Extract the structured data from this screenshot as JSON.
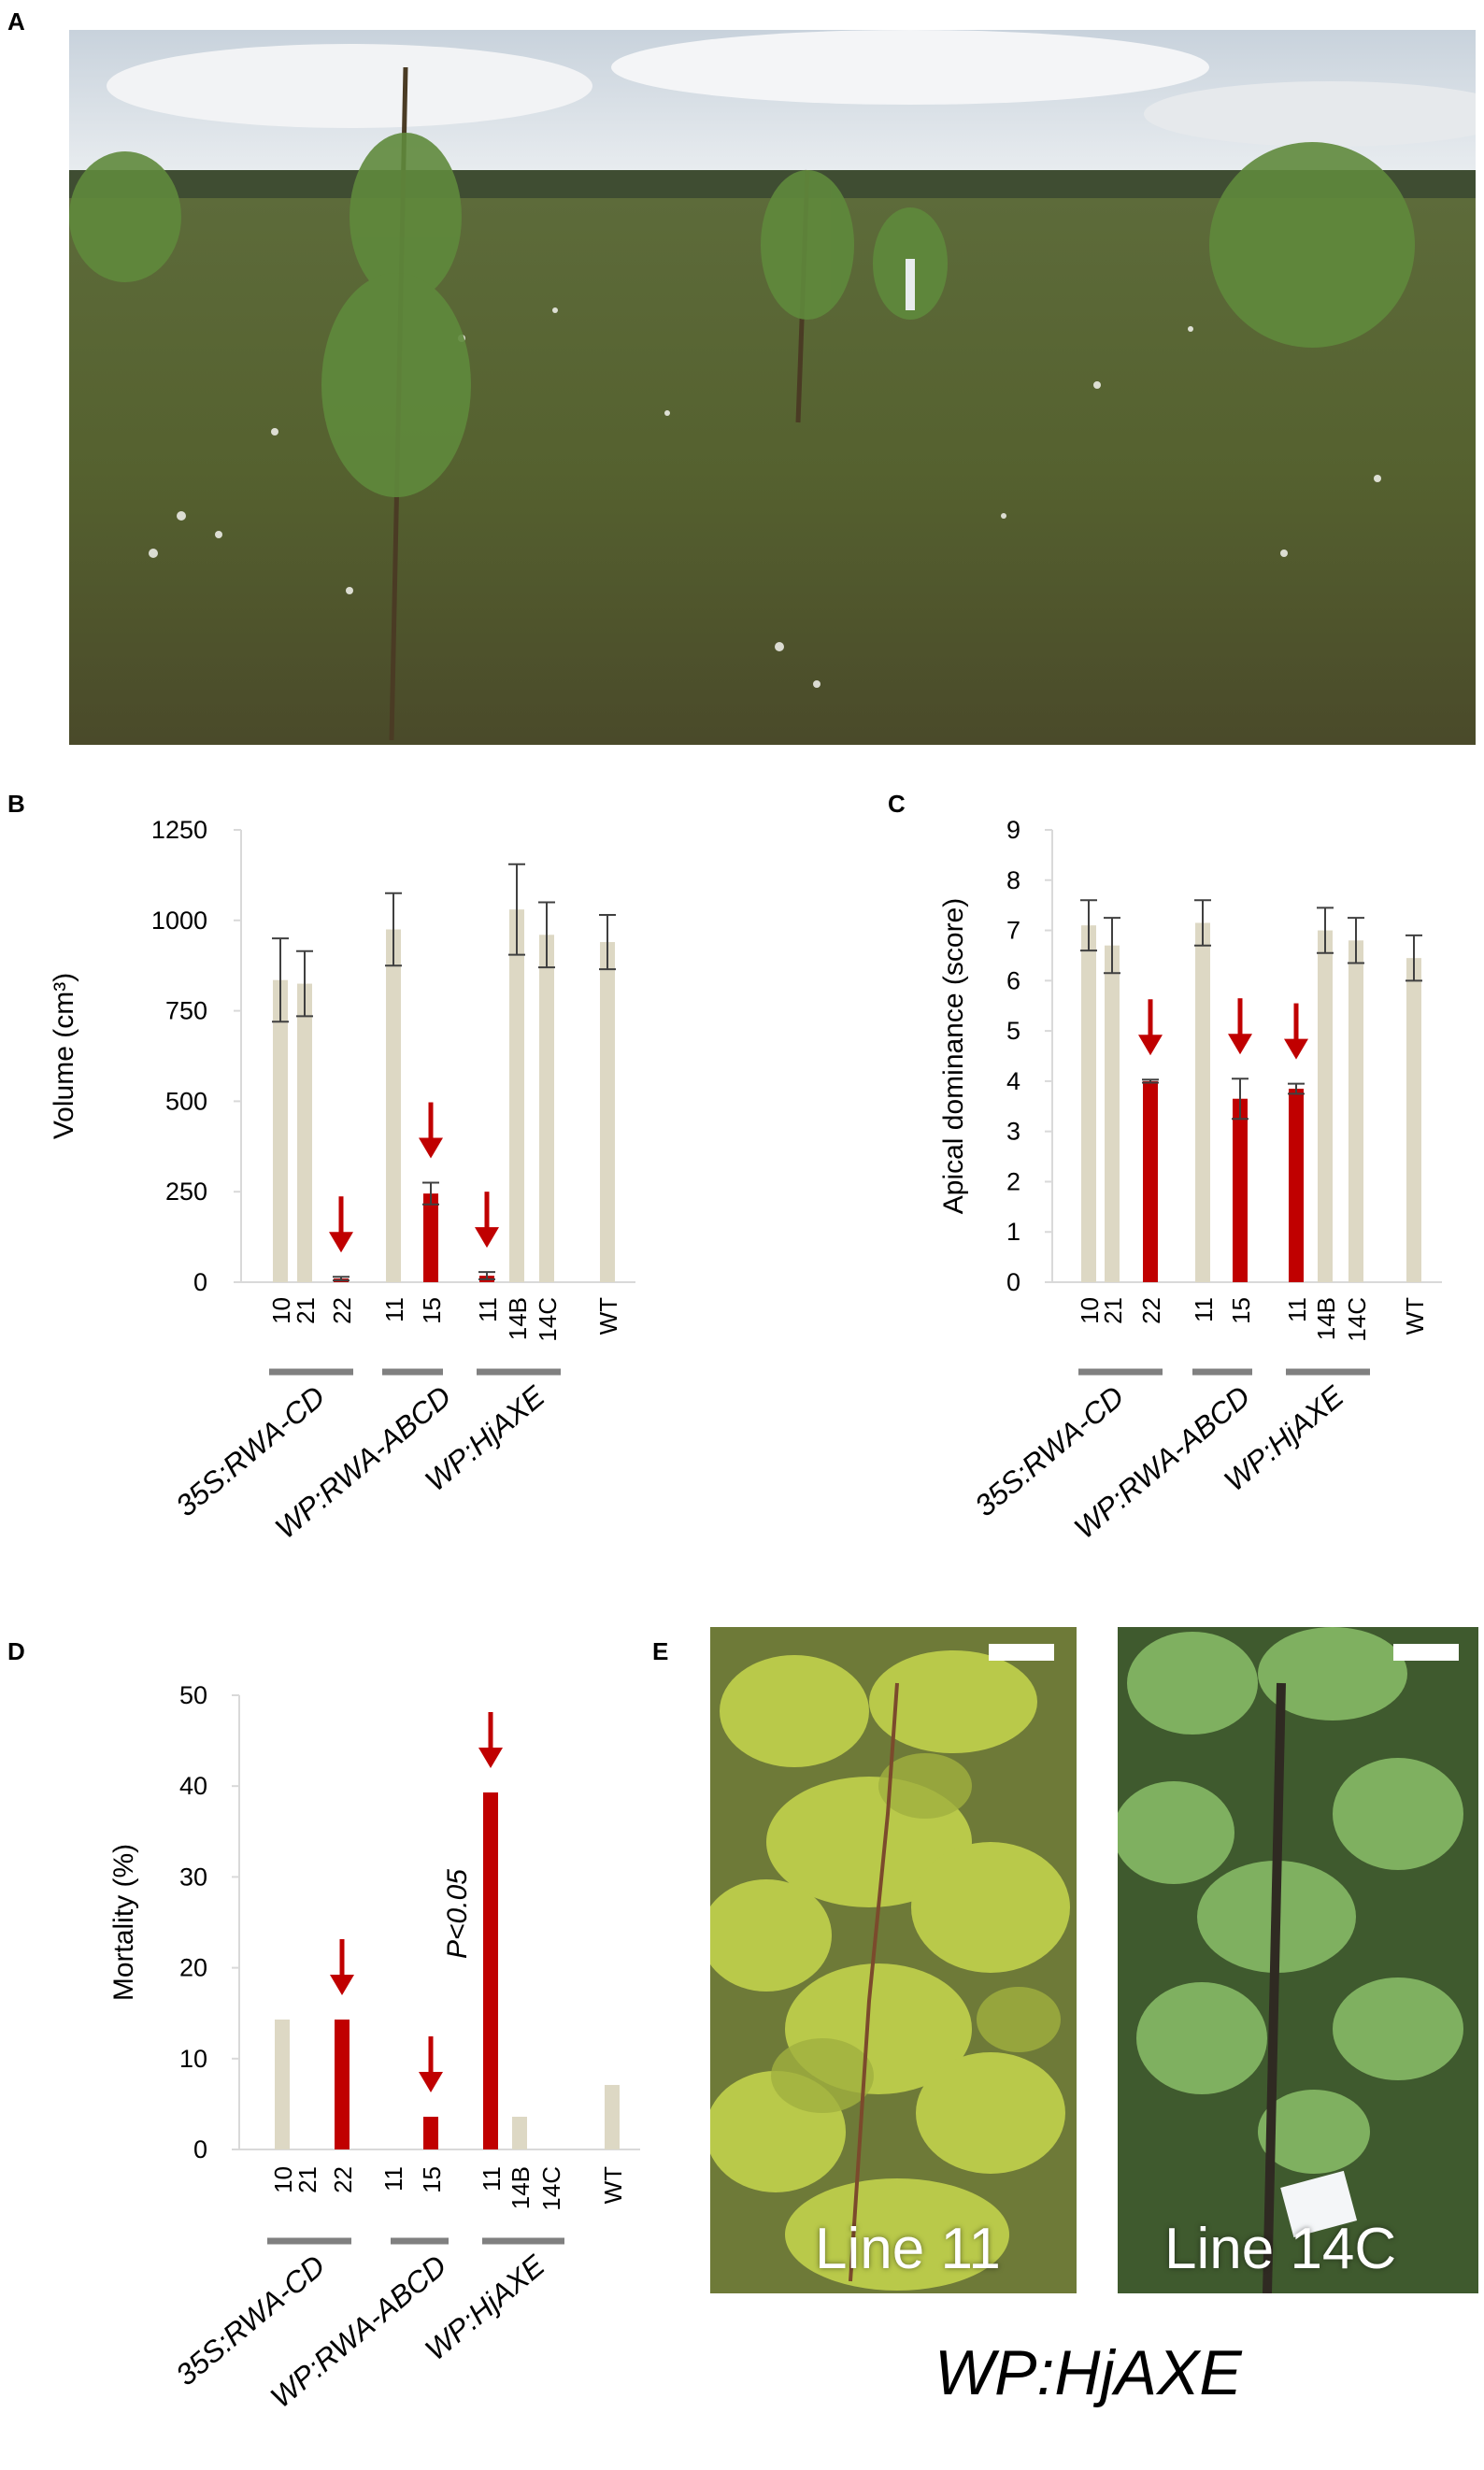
{
  "panels": {
    "a": {
      "letter": "A"
    },
    "b": {
      "letter": "B"
    },
    "c": {
      "letter": "C"
    },
    "d": {
      "letter": "D"
    },
    "e": {
      "letter": "E",
      "photo_left_label": "Line 11",
      "photo_right_label": "Line 14C",
      "caption": "WP:HjAXE"
    }
  },
  "colors": {
    "wt_bar": "#ddd8c4",
    "highlight_bar": "#c00000",
    "arrow": "#c00000",
    "group_line": "#808080",
    "axis": "#d9d9d9"
  },
  "chart_data": [
    {
      "id": "B",
      "type": "bar",
      "ylabel": "Volume (cm³)",
      "ylim": [
        0,
        1250
      ],
      "yticks": [
        0,
        250,
        500,
        750,
        1000,
        1250
      ],
      "categories": [
        "10",
        "21",
        "22",
        "11",
        "15",
        "11",
        "14B",
        "14C",
        "WT"
      ],
      "values": [
        835,
        825,
        10,
        975,
        245,
        18,
        1030,
        960,
        940
      ],
      "errors": [
        115,
        90,
        5,
        100,
        30,
        10,
        125,
        90,
        75
      ],
      "highlight": [
        false,
        false,
        true,
        false,
        true,
        true,
        false,
        false,
        false
      ],
      "groups": [
        {
          "label": "35S:RWA-CD",
          "members": [
            0,
            1,
            2
          ]
        },
        {
          "label": "WP:RWA-ABCD",
          "members": [
            3,
            4
          ]
        },
        {
          "label": "WP:HjAXE",
          "members": [
            5,
            6,
            7
          ]
        }
      ]
    },
    {
      "id": "C",
      "type": "bar",
      "ylabel": "Apical dominance (score)",
      "ylim": [
        0,
        9
      ],
      "yticks": [
        0,
        1,
        2,
        3,
        4,
        5,
        6,
        7,
        8,
        9
      ],
      "categories": [
        "10",
        "21",
        "22",
        "11",
        "15",
        "11",
        "14B",
        "14C",
        "WT"
      ],
      "values": [
        7.1,
        6.7,
        4.0,
        7.15,
        3.65,
        3.85,
        7.0,
        6.8,
        6.45
      ],
      "errors": [
        0.5,
        0.55,
        0.03,
        0.45,
        0.4,
        0.1,
        0.45,
        0.45,
        0.45
      ],
      "highlight": [
        false,
        false,
        true,
        false,
        true,
        true,
        false,
        false,
        false
      ],
      "groups": [
        {
          "label": "35S:RWA-CD",
          "members": [
            0,
            1,
            2
          ]
        },
        {
          "label": "WP:RWA-ABCD",
          "members": [
            3,
            4
          ]
        },
        {
          "label": "WP:HjAXE",
          "members": [
            5,
            6,
            7
          ]
        }
      ]
    },
    {
      "id": "D",
      "type": "bar",
      "ylabel": "Mortality (%)",
      "ylim": [
        0,
        50
      ],
      "yticks": [
        0,
        10,
        20,
        30,
        40,
        50
      ],
      "categories": [
        "10",
        "21",
        "22",
        "11",
        "15",
        "11",
        "14B",
        "14C",
        "WT"
      ],
      "values": [
        14.3,
        0,
        14.3,
        0,
        3.6,
        39.3,
        3.6,
        0,
        7.1
      ],
      "highlight": [
        false,
        false,
        true,
        false,
        true,
        true,
        false,
        false,
        false
      ],
      "annotation": "P<0.05",
      "groups": [
        {
          "label": "35S:RWA-CD",
          "members": [
            0,
            1,
            2
          ]
        },
        {
          "label": "WP:RWA-ABCD",
          "members": [
            3,
            4
          ]
        },
        {
          "label": "WP:HjAXE",
          "members": [
            5,
            6,
            7
          ]
        }
      ]
    }
  ]
}
